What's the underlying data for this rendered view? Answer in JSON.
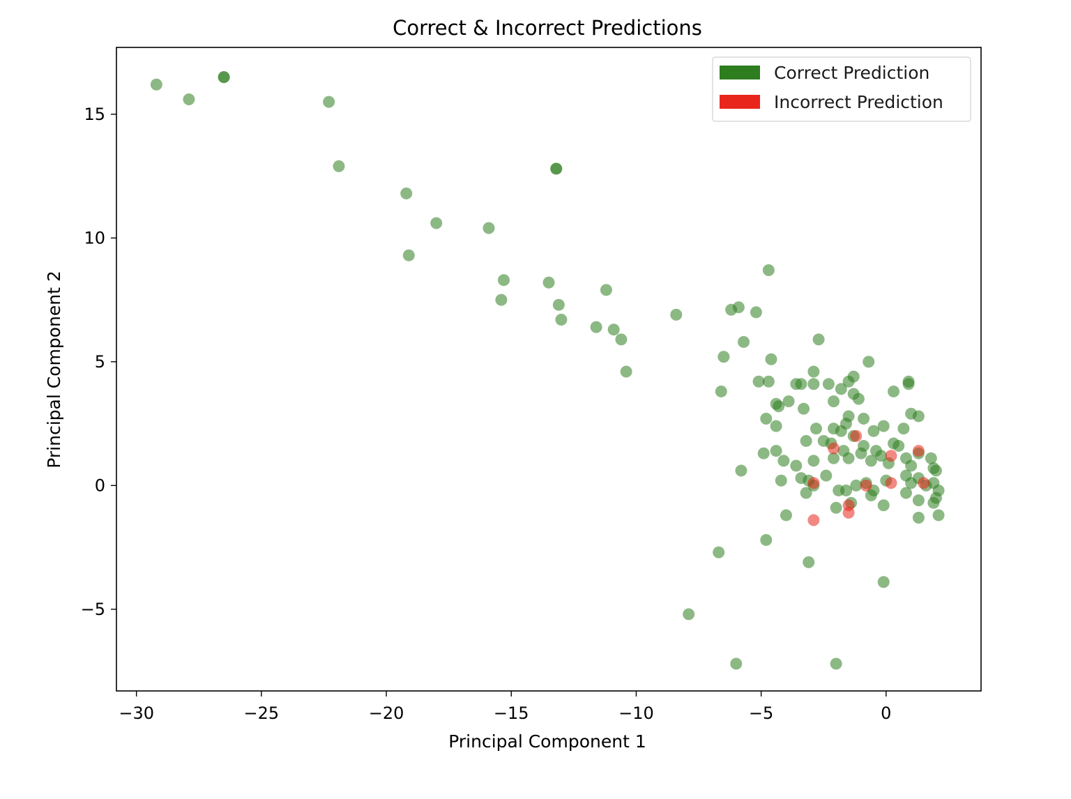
{
  "chart_data": {
    "type": "scatter",
    "title": "Correct & Incorrect Predictions",
    "xlabel": "Principal Component 1",
    "ylabel": "Principal Component 2",
    "xlim": [
      -30.8,
      3.8
    ],
    "ylim": [
      -8.3,
      17.7
    ],
    "xticks": [
      -30,
      -25,
      -20,
      -15,
      -10,
      -5,
      0
    ],
    "yticks": [
      -5,
      0,
      5,
      10,
      15
    ],
    "grid": false,
    "legend_position": "top-right",
    "series": [
      {
        "name": "Correct Prediction",
        "color": "#2e7d1f",
        "points": [
          [
            -29.2,
            16.2
          ],
          [
            -27.9,
            15.6
          ],
          [
            -26.5,
            16.5
          ],
          [
            -26.5,
            16.5
          ],
          [
            -22.3,
            15.5
          ],
          [
            -21.9,
            12.9
          ],
          [
            -13.2,
            12.8
          ],
          [
            -13.2,
            12.8
          ],
          [
            -19.2,
            11.8
          ],
          [
            -18.0,
            10.6
          ],
          [
            -15.9,
            10.4
          ],
          [
            -19.1,
            9.3
          ],
          [
            -15.3,
            8.3
          ],
          [
            -13.5,
            8.2
          ],
          [
            -11.2,
            7.9
          ],
          [
            -4.7,
            8.7
          ],
          [
            -15.4,
            7.5
          ],
          [
            -13.1,
            7.3
          ],
          [
            -13.0,
            6.7
          ],
          [
            -11.6,
            6.4
          ],
          [
            -10.9,
            6.3
          ],
          [
            -10.6,
            5.9
          ],
          [
            -8.4,
            6.9
          ],
          [
            -6.2,
            7.1
          ],
          [
            -5.9,
            7.2
          ],
          [
            -5.2,
            7.0
          ],
          [
            -10.4,
            4.6
          ],
          [
            -5.7,
            5.8
          ],
          [
            -6.5,
            5.2
          ],
          [
            -4.6,
            5.1
          ],
          [
            -2.7,
            5.9
          ],
          [
            -0.7,
            5.0
          ],
          [
            -6.6,
            3.8
          ],
          [
            -5.1,
            4.2
          ],
          [
            -4.7,
            4.2
          ],
          [
            -3.6,
            4.1
          ],
          [
            -3.4,
            4.1
          ],
          [
            -2.9,
            4.1
          ],
          [
            -2.9,
            4.6
          ],
          [
            -2.3,
            4.1
          ],
          [
            -1.8,
            3.9
          ],
          [
            -1.3,
            4.4
          ],
          [
            -1.5,
            4.2
          ],
          [
            0.3,
            3.8
          ],
          [
            0.9,
            4.1
          ],
          [
            0.9,
            4.2
          ],
          [
            -4.4,
            3.3
          ],
          [
            -4.3,
            3.2
          ],
          [
            -3.9,
            3.4
          ],
          [
            -3.3,
            3.1
          ],
          [
            -2.1,
            3.4
          ],
          [
            -1.3,
            3.7
          ],
          [
            -1.1,
            3.5
          ],
          [
            -4.8,
            2.7
          ],
          [
            -4.4,
            2.4
          ],
          [
            -2.8,
            2.3
          ],
          [
            -2.1,
            2.3
          ],
          [
            -1.5,
            2.8
          ],
          [
            -1.6,
            2.5
          ],
          [
            -0.9,
            2.7
          ],
          [
            -0.5,
            2.2
          ],
          [
            -0.1,
            2.4
          ],
          [
            0.7,
            2.3
          ],
          [
            1.0,
            2.9
          ],
          [
            1.3,
            2.8
          ],
          [
            -3.2,
            1.8
          ],
          [
            -2.5,
            1.8
          ],
          [
            -2.2,
            1.7
          ],
          [
            -1.8,
            2.2
          ],
          [
            -1.3,
            2.0
          ],
          [
            -0.9,
            1.6
          ],
          [
            -0.4,
            1.4
          ],
          [
            0.3,
            1.7
          ],
          [
            0.5,
            1.6
          ],
          [
            -4.9,
            1.3
          ],
          [
            -4.4,
            1.4
          ],
          [
            -4.1,
            1.0
          ],
          [
            -3.6,
            0.8
          ],
          [
            -2.9,
            1.0
          ],
          [
            -2.1,
            1.1
          ],
          [
            -1.7,
            1.4
          ],
          [
            -1.5,
            1.1
          ],
          [
            -1.0,
            1.3
          ],
          [
            -0.6,
            1.0
          ],
          [
            -0.2,
            1.2
          ],
          [
            0.1,
            0.9
          ],
          [
            0.8,
            1.1
          ],
          [
            1.0,
            0.8
          ],
          [
            1.3,
            1.3
          ],
          [
            1.8,
            1.1
          ],
          [
            1.9,
            0.7
          ],
          [
            2.0,
            0.6
          ],
          [
            -5.8,
            0.6
          ],
          [
            -4.2,
            0.2
          ],
          [
            -3.4,
            0.3
          ],
          [
            -3.1,
            0.2
          ],
          [
            -2.9,
            0.0
          ],
          [
            -2.4,
            0.4
          ],
          [
            -1.9,
            -0.2
          ],
          [
            -1.6,
            -0.2
          ],
          [
            -1.2,
            0.0
          ],
          [
            -0.8,
            0.1
          ],
          [
            -0.5,
            -0.2
          ],
          [
            0.0,
            0.2
          ],
          [
            0.8,
            0.4
          ],
          [
            1.0,
            0.1
          ],
          [
            1.3,
            0.3
          ],
          [
            1.6,
            0.0
          ],
          [
            1.9,
            0.1
          ],
          [
            2.1,
            -0.2
          ],
          [
            2.0,
            -0.5
          ],
          [
            1.9,
            -0.7
          ],
          [
            -3.2,
            -0.3
          ],
          [
            -2.0,
            -0.9
          ],
          [
            -1.4,
            -0.7
          ],
          [
            -0.6,
            -0.4
          ],
          [
            -0.1,
            -0.8
          ],
          [
            0.8,
            -0.3
          ],
          [
            1.3,
            -0.6
          ],
          [
            2.1,
            -1.2
          ],
          [
            -4.0,
            -1.2
          ],
          [
            1.3,
            -1.3
          ],
          [
            -4.8,
            -2.2
          ],
          [
            -6.7,
            -2.7
          ],
          [
            -3.1,
            -3.1
          ],
          [
            -0.1,
            -3.9
          ],
          [
            -7.9,
            -5.2
          ],
          [
            -6.0,
            -7.2
          ],
          [
            -2.0,
            -7.2
          ]
        ]
      },
      {
        "name": "Incorrect Prediction",
        "color": "#e8261c",
        "points": [
          [
            -1.2,
            2.0
          ],
          [
            -2.1,
            1.5
          ],
          [
            0.2,
            1.2
          ],
          [
            1.3,
            1.4
          ],
          [
            -0.8,
            0.0
          ],
          [
            0.2,
            0.1
          ],
          [
            1.5,
            0.1
          ],
          [
            -1.5,
            -0.8
          ],
          [
            -1.5,
            -1.1
          ],
          [
            -2.9,
            -1.4
          ],
          [
            -2.9,
            0.1
          ]
        ]
      }
    ]
  }
}
